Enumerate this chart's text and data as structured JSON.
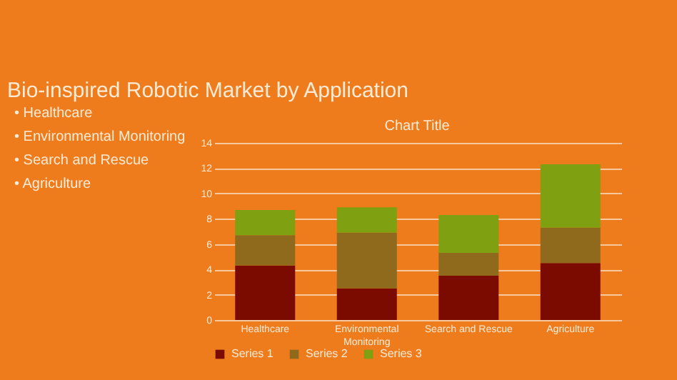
{
  "chart_data": {
    "type": "bar",
    "title": "Bio-inspired Robotic Market by Application",
    "subtitle": "Chart Title",
    "annotations": [
      "• Healthcare",
      "• Environmental Monitoring",
      "• Search and Rescue",
      "• Agriculture"
    ],
    "categories": [
      "Healthcare",
      "Environmental Monitoring",
      "Search and Rescue",
      "Agriculture"
    ],
    "stacked": true,
    "series": [
      {
        "name": "Series 1",
        "color": "#7b0a00",
        "values": [
          4.3,
          2.5,
          3.5,
          4.5
        ]
      },
      {
        "name": "Series 2",
        "color": "#8f6a1c",
        "values": [
          2.4,
          4.4,
          1.8,
          2.8
        ]
      },
      {
        "name": "Series 3",
        "color": "#7fa010",
        "values": [
          2,
          2,
          3,
          5
        ]
      }
    ],
    "ylim": [
      0,
      14
    ],
    "yticks": [
      0,
      2,
      4,
      6,
      8,
      10,
      12,
      14
    ],
    "grid": "y",
    "legend": "bottom"
  }
}
